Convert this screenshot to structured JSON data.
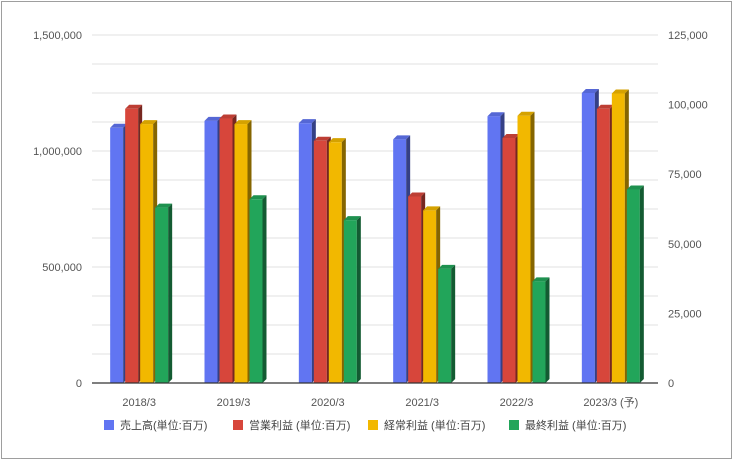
{
  "chart_data": {
    "type": "bar",
    "categories": [
      "2018/3",
      "2019/3",
      "2020/3",
      "2021/3",
      "2022/3",
      "2023/3 (予)"
    ],
    "series": [
      {
        "name": "売上高(単位:百万)",
        "axis": "left",
        "color": "#6175f2",
        "values": [
          1100000,
          1130000,
          1120000,
          1050000,
          1150000,
          1250000
        ]
      },
      {
        "name": "営業利益 (単位:百万)",
        "axis": "right",
        "color": "#d7463b",
        "values": [
          98500,
          95000,
          87000,
          67000,
          88000,
          98500
        ]
      },
      {
        "name": "経常利益 (単位:百万)",
        "axis": "right",
        "color": "#f2b800",
        "values": [
          93000,
          93000,
          86500,
          62000,
          96000,
          104000
        ]
      },
      {
        "name": "最終利益 (単位:百万)",
        "axis": "right",
        "color": "#22a55a",
        "values": [
          63000,
          66000,
          58500,
          41000,
          36500,
          69500
        ]
      }
    ],
    "left_axis": {
      "min": 0,
      "max": 1500000,
      "ticks": [
        "0",
        "500,000",
        "1,000,000",
        "1,500,000"
      ]
    },
    "right_axis": {
      "min": 0,
      "max": 125000,
      "ticks": [
        "0",
        "25,000",
        "50,000",
        "75,000",
        "100,000",
        "125,000"
      ]
    },
    "grid": true,
    "legend_position": "bottom",
    "style": "3d-bars"
  }
}
